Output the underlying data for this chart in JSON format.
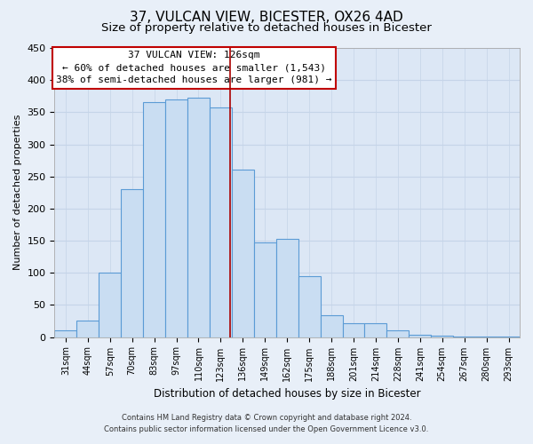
{
  "title": "37, VULCAN VIEW, BICESTER, OX26 4AD",
  "subtitle": "Size of property relative to detached houses in Bicester",
  "xlabel": "Distribution of detached houses by size in Bicester",
  "ylabel": "Number of detached properties",
  "footnote1": "Contains HM Land Registry data © Crown copyright and database right 2024.",
  "footnote2": "Contains public sector information licensed under the Open Government Licence v3.0.",
  "bar_labels": [
    "31sqm",
    "44sqm",
    "57sqm",
    "70sqm",
    "83sqm",
    "97sqm",
    "110sqm",
    "123sqm",
    "136sqm",
    "149sqm",
    "162sqm",
    "175sqm",
    "188sqm",
    "201sqm",
    "214sqm",
    "228sqm",
    "241sqm",
    "254sqm",
    "267sqm",
    "280sqm",
    "293sqm"
  ],
  "bar_values": [
    10,
    25,
    100,
    230,
    365,
    370,
    373,
    357,
    260,
    147,
    153,
    95,
    34,
    21,
    21,
    10,
    4,
    2,
    1,
    1,
    1
  ],
  "bar_color": "#c9ddf2",
  "bar_edge_color": "#5b9bd5",
  "annotation_title": "37 VULCAN VIEW: 126sqm",
  "annotation_line1": "← 60% of detached houses are smaller (1,543)",
  "annotation_line2": "38% of semi-detached houses are larger (981) →",
  "annotation_box_color": "#ffffff",
  "annotation_box_edge": "#c00000",
  "vertical_line_color": "#aa0000",
  "red_line_x": 7.43,
  "ylim": [
    0,
    450
  ],
  "yticks": [
    0,
    50,
    100,
    150,
    200,
    250,
    300,
    350,
    400,
    450
  ],
  "background_color": "#e8eff8",
  "plot_bg_color": "#dce7f5",
  "grid_color": "#c5d4e8",
  "title_fontsize": 11,
  "subtitle_fontsize": 9.5
}
